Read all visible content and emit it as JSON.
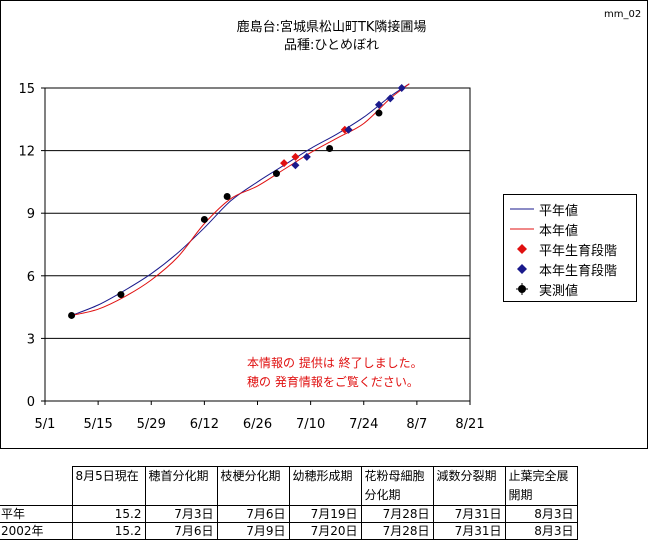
{
  "code": "mm_02",
  "title_line1": "鹿島台:宮城県松山町TK隣接圃場",
  "title_line2": "品種:ひとめぼれ",
  "notice_line1": "本情報の 提供は 終了しました。",
  "notice_line2": "穂の 発育情報をご覧ください。",
  "colors": {
    "normal_line": "#1a1a8c",
    "current_line": "#e01010",
    "normal_stage": "#e01010",
    "current_stage": "#1a1a8c",
    "observed": "#000000"
  },
  "chart_data": {
    "type": "line",
    "x_ticks": [
      "5/1",
      "5/15",
      "5/29",
      "6/12",
      "6/26",
      "7/10",
      "7/24",
      "8/7",
      "8/21"
    ],
    "y_ticks": [
      "0",
      "3",
      "6",
      "9",
      "12",
      "15"
    ],
    "xlim": [
      "5/1",
      "8/21"
    ],
    "ylim": [
      0,
      15
    ],
    "grid": "horizontal",
    "legend_position": "right",
    "series": [
      {
        "name": "平年値",
        "kind": "line",
        "points": [
          [
            "5/8",
            4.1
          ],
          [
            "5/15",
            4.6
          ],
          [
            "5/22",
            5.3
          ],
          [
            "5/29",
            6.1
          ],
          [
            "6/5",
            7.1
          ],
          [
            "6/12",
            8.3
          ],
          [
            "6/19",
            9.6
          ],
          [
            "6/26",
            10.5
          ],
          [
            "7/3",
            11.3
          ],
          [
            "7/10",
            12.1
          ],
          [
            "7/17",
            12.8
          ],
          [
            "7/24",
            13.6
          ],
          [
            "7/31",
            14.6
          ],
          [
            "8/5",
            15.2
          ]
        ]
      },
      {
        "name": "本年値",
        "kind": "line",
        "points": [
          [
            "5/8",
            4.1
          ],
          [
            "5/15",
            4.4
          ],
          [
            "5/22",
            5.0
          ],
          [
            "5/29",
            5.8
          ],
          [
            "6/5",
            6.9
          ],
          [
            "6/12",
            8.5
          ],
          [
            "6/19",
            9.7
          ],
          [
            "6/26",
            10.3
          ],
          [
            "7/3",
            11.1
          ],
          [
            "7/10",
            11.9
          ],
          [
            "7/17",
            12.6
          ],
          [
            "7/24",
            13.3
          ],
          [
            "7/31",
            14.5
          ],
          [
            "8/5",
            15.2
          ]
        ]
      },
      {
        "name": "平年生育段階",
        "kind": "marker-diamond",
        "points": [
          [
            "7/3",
            11.4
          ],
          [
            "7/6",
            11.7
          ],
          [
            "7/19",
            13.0
          ]
        ]
      },
      {
        "name": "本年生育段階",
        "kind": "marker-diamond",
        "points": [
          [
            "7/6",
            11.3
          ],
          [
            "7/9",
            11.7
          ],
          [
            "7/20",
            13.0
          ],
          [
            "7/28",
            14.2
          ],
          [
            "7/31",
            14.5
          ],
          [
            "8/3",
            15.0
          ]
        ]
      },
      {
        "name": "実測値",
        "kind": "marker-dot",
        "points": [
          [
            "5/8",
            4.1
          ],
          [
            "5/21",
            5.1
          ],
          [
            "6/12",
            8.7
          ],
          [
            "6/18",
            9.8
          ],
          [
            "7/1",
            10.9
          ],
          [
            "7/15",
            12.1
          ],
          [
            "7/28",
            13.8
          ]
        ]
      }
    ]
  },
  "table": {
    "headers": [
      "8月5日現在",
      "穂首分化期",
      "枝梗分化期",
      "幼穂形成期",
      "花粉母細胞分化期",
      "減数分裂期",
      "止葉完全展開期"
    ],
    "rows": [
      {
        "label": "平年",
        "cells": [
          "15.2",
          "7月3日",
          "7月6日",
          "7月19日",
          "7月28日",
          "7月31日",
          "8月3日"
        ]
      },
      {
        "label": "2002年",
        "cells": [
          "15.2",
          "7月6日",
          "7月9日",
          "7月20日",
          "7月28日",
          "7月31日",
          "8月3日"
        ]
      }
    ]
  }
}
